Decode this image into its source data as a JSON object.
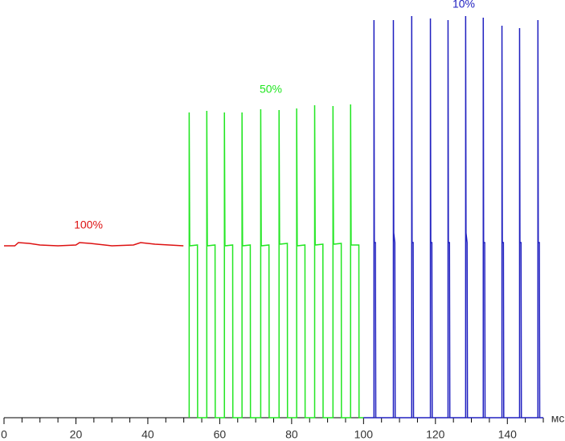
{
  "chart_data": {
    "type": "line",
    "xlabel": "мс",
    "xlim": [
      0,
      150
    ],
    "xticks": [
      0,
      20,
      40,
      60,
      80,
      100,
      120,
      140
    ],
    "xminorticks": [
      5,
      10,
      15,
      25,
      30,
      35,
      45,
      50,
      55,
      65,
      70,
      75,
      85,
      90,
      95,
      105,
      110,
      115,
      125,
      130,
      135,
      145,
      150
    ],
    "ylim": [
      0,
      100
    ],
    "grid": false,
    "series": [
      {
        "name": "100%",
        "color": "#dd1111",
        "x": [
          0,
          3,
          4,
          7,
          10,
          15,
          20,
          21,
          24,
          30,
          36,
          38,
          42,
          46,
          49.9
        ],
        "values": [
          42.8,
          42.8,
          43.6,
          43.4,
          43,
          42.8,
          43,
          43.6,
          43.4,
          42.8,
          43,
          43.6,
          43.2,
          43,
          42.8
        ]
      },
      {
        "name": "50%",
        "color": "#22e622",
        "x": [
          51.5,
          51.5,
          51.65,
          53.8,
          53.85,
          56.4,
          56.4,
          56.55,
          58.7,
          58.75,
          61.3,
          61.3,
          61.45,
          63.6,
          63.65,
          66.2,
          66.2,
          66.35,
          68.5,
          68.55,
          71.4,
          71.4,
          71.55,
          73.7,
          73.75,
          76.5,
          76.5,
          76.65,
          78.8,
          78.85,
          81.4,
          81.4,
          81.55,
          83.7,
          83.75,
          86.4,
          86.4,
          86.55,
          88.7,
          88.75,
          91.5,
          91.5,
          91.65,
          93.8,
          93.85,
          96.4,
          96.4,
          96.55,
          98.7,
          98.75,
          100
        ],
        "values": [
          0,
          76,
          42.8,
          43,
          0,
          0,
          76.4,
          42.8,
          43,
          0,
          0,
          76,
          42.8,
          43,
          0,
          0,
          76,
          42.8,
          43,
          0,
          0,
          76.8,
          42.8,
          43,
          0,
          0,
          76.6,
          43.2,
          43.4,
          0,
          0,
          77,
          42.8,
          43,
          0,
          0,
          77.8,
          43,
          43.2,
          0,
          0,
          77.6,
          43.2,
          43.4,
          0,
          0,
          78,
          43,
          43,
          0,
          0
        ]
      },
      {
        "name": "10%",
        "color": "#2020c0",
        "x": [
          100,
          102.9,
          102.9,
          103,
          103.3,
          103.4,
          108.3,
          108.3,
          108.4,
          108.7,
          108.8,
          113.4,
          113.4,
          113.5,
          113.8,
          113.9,
          118.6,
          118.6,
          118.7,
          119,
          119.1,
          123.5,
          123.5,
          123.6,
          123.9,
          124,
          128.4,
          128.4,
          128.5,
          128.8,
          128.9,
          133.3,
          133.3,
          133.4,
          133.7,
          133.8,
          138.5,
          138.5,
          138.6,
          138.9,
          139,
          143.4,
          143.4,
          143.5,
          143.8,
          143.9,
          148.5,
          148.5,
          148.6,
          148.9,
          149,
          150
        ],
        "values": [
          0,
          0,
          99,
          43.6,
          43.6,
          0,
          0,
          99,
          46,
          43.6,
          0,
          0,
          100,
          43.6,
          43.6,
          0,
          0,
          99.4,
          43.6,
          43.6,
          0,
          0,
          99,
          43.6,
          43.6,
          0,
          0,
          100,
          46,
          43.6,
          0,
          0,
          99.6,
          43.6,
          43.6,
          0,
          0,
          97.6,
          43.6,
          43.6,
          0,
          0,
          97,
          43.6,
          43.6,
          0,
          0,
          99,
          43.6,
          43.6,
          0,
          0
        ]
      }
    ]
  }
}
